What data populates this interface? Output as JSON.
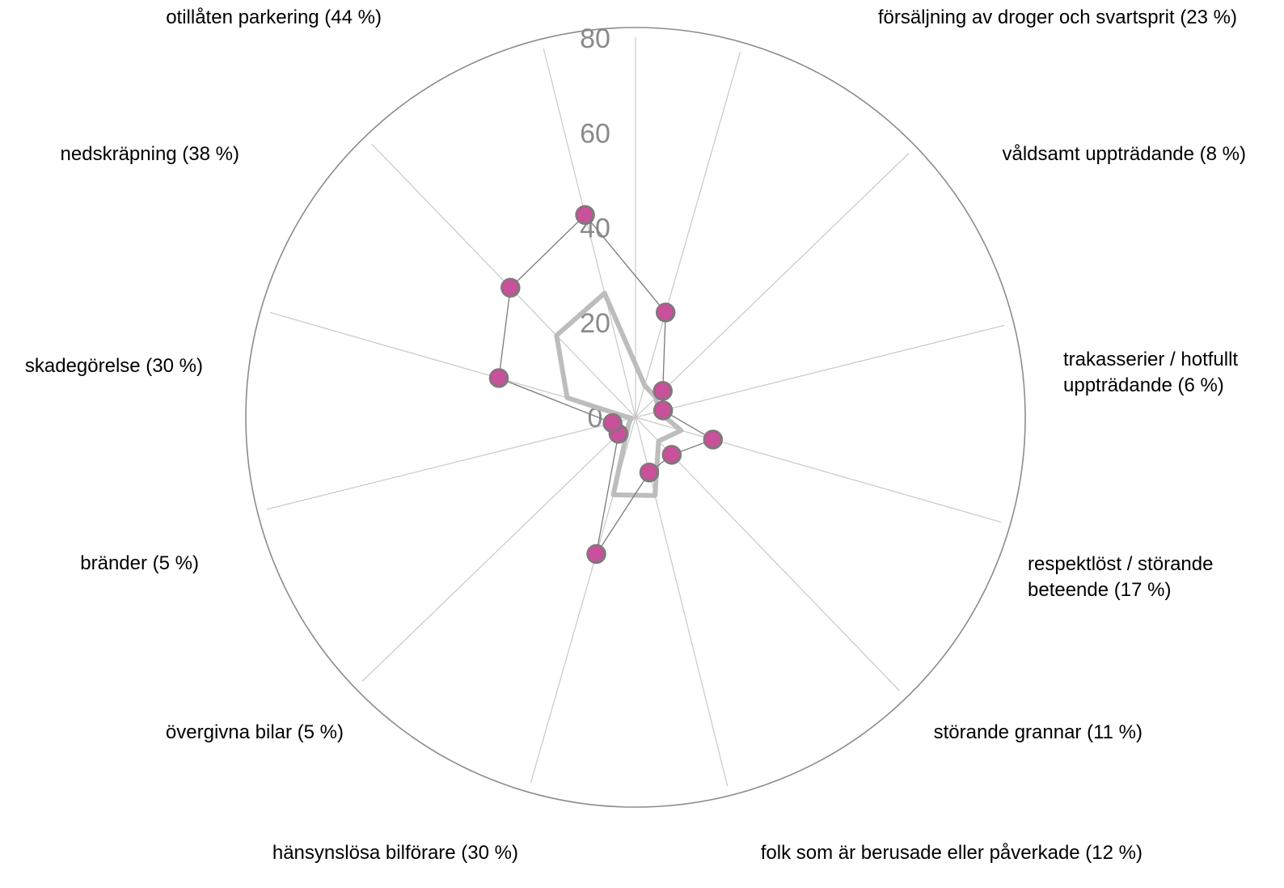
{
  "chart_data": {
    "type": "radar",
    "title": "",
    "r_range": [
      0,
      80
    ],
    "r_ticks": [
      "0",
      "20",
      "40",
      "60",
      "80"
    ],
    "grid": true,
    "legend": "none",
    "categories": [
      [
        "försäljning av droger och svartsprit (23 %)"
      ],
      [
        "våldsamt uppträdande (8 %)"
      ],
      [
        "trakasserier / hotfullt",
        "uppträdande (6 %)"
      ],
      [
        "respektlöst / störande",
        "beteende (17 %)"
      ],
      [
        "störande grannar (11 %)"
      ],
      [
        "folk som är berusade eller påverkade (12 %)"
      ],
      [
        "hänsynslösa bilförare (30 %)"
      ],
      [
        "övergivna bilar (5 %)"
      ],
      [
        "bränder (5 %)"
      ],
      [
        "skadegörelse (30 %)"
      ],
      [
        "nedskräpning (38 %)"
      ],
      [
        "otillåten parkering (44 %)"
      ]
    ],
    "series": [
      {
        "values": [
          23,
          8,
          6,
          17,
          11,
          12,
          30,
          5,
          5,
          30,
          38,
          44
        ],
        "color": "#c9509a",
        "line_color": "#7a7a7a",
        "markers": true
      },
      {
        "values": [
          7,
          6,
          5,
          10,
          7,
          17,
          17,
          2,
          1,
          15,
          24,
          27
        ],
        "color": "#bdbdbd",
        "markers": false
      }
    ]
  }
}
